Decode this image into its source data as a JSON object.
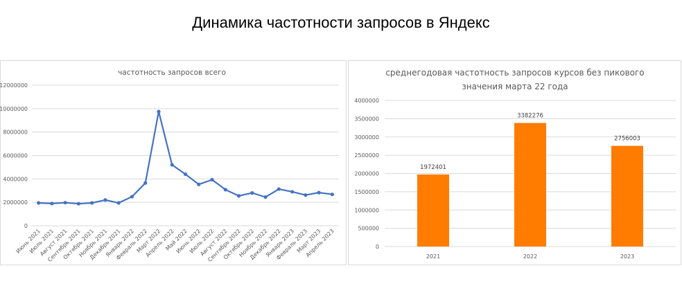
{
  "page": {
    "title": "Динамика частотности запросов в Яндекс"
  },
  "colors": {
    "line": "#4472c4",
    "bar": "#ff7c00",
    "grid": "#d9d9d9",
    "text": "#595959"
  },
  "chart_data": [
    {
      "type": "line",
      "title": "частотность запросов всего",
      "categories": [
        "Июнь 2021",
        "Июль 2021",
        "Август 2021",
        "Сентябрь 2021",
        "Октябрь 2021",
        "Ноябрь 2021",
        "Декабрь 2021",
        "Январь 2022",
        "Февраль 2022",
        "Март 2022",
        "Апрель 2022",
        "Май 2022",
        "Июнь 2022",
        "Июль 2022",
        "Август 2022",
        "Сентябрь 2022",
        "Октябрь 2022",
        "Ноябрь 2022",
        "Декабрь 2022",
        "Январь 2023",
        "Февраль 2023",
        "Март 2023",
        "Апрель 2023"
      ],
      "series": [
        {
          "values": [
            1950000,
            1900000,
            1970000,
            1880000,
            1950000,
            2200000,
            1950000,
            2480000,
            3650000,
            9750000,
            5200000,
            4400000,
            3530000,
            3930000,
            3080000,
            2550000,
            2800000,
            2450000,
            3130000,
            2900000,
            2620000,
            2830000,
            2680000
          ]
        }
      ],
      "ylim": [
        0,
        12000000
      ],
      "yticks": [
        "0",
        "2000000",
        "4000000",
        "6000000",
        "8000000",
        "10000000",
        "12000000"
      ],
      "grid": true,
      "legend": "none"
    },
    {
      "type": "bar",
      "title": [
        "среднегодовая частотность запросов курсов без пикового",
        "значения марта 22 года"
      ],
      "categories": [
        "2021",
        "2022",
        "2023"
      ],
      "values": [
        1972401,
        3382276,
        2756003
      ],
      "data_labels": [
        "1972401",
        "3382276",
        "2756003"
      ],
      "ylim": [
        0,
        4000000
      ],
      "yticks": [
        "0",
        "500000",
        "1000000",
        "1500000",
        "2000000",
        "2500000",
        "3000000",
        "3500000",
        "4000000"
      ],
      "grid": true,
      "legend": "none"
    }
  ]
}
